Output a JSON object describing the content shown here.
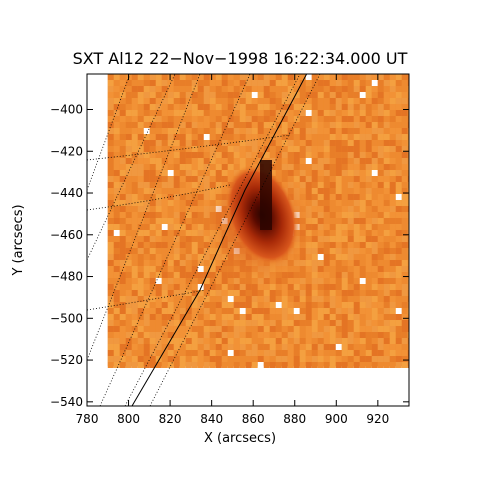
{
  "title": "SXT Al12 22−Nov−1998 16:22:34.000 UT",
  "axes": {
    "x": {
      "label": "X (arcsecs)",
      "range": [
        780,
        935
      ],
      "ticks": [
        "780",
        "800",
        "820",
        "840",
        "860",
        "880",
        "900",
        "920"
      ],
      "tick_values": [
        780,
        800,
        820,
        840,
        860,
        880,
        900,
        920
      ]
    },
    "y": {
      "label": "Y (arcsecs)",
      "range": [
        -542,
        -383
      ],
      "ticks": [
        "−400",
        "−420",
        "−440",
        "−460",
        "−480",
        "−500",
        "−520",
        "−540"
      ],
      "tick_values": [
        -400,
        -420,
        -440,
        -460,
        -480,
        -500,
        -520,
        -540
      ]
    }
  },
  "image": {
    "colormap": "red-temperature",
    "background_color": "#f08a2c",
    "missing_color": "#ffffff",
    "data_x_range": [
      790,
      935
    ],
    "data_y_range": [
      -523,
      -383
    ],
    "dark_core_center": [
      868,
      -445
    ],
    "overlays": [
      "solar-limb-line",
      "coordinate-grid-dotted"
    ]
  }
}
